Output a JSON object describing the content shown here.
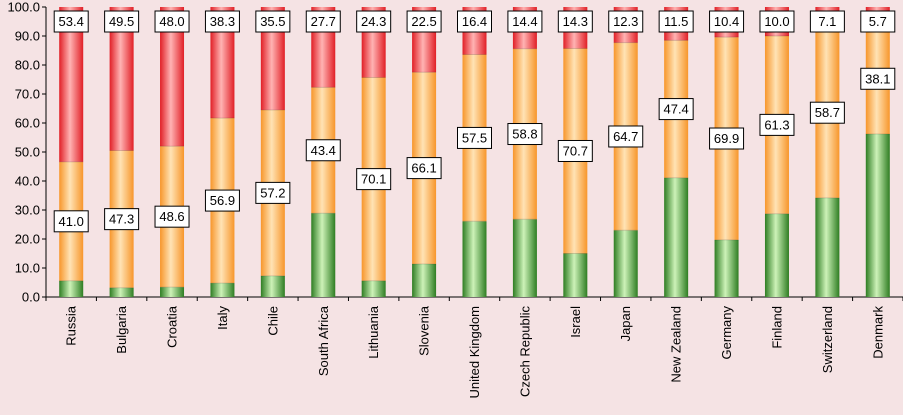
{
  "chart_data": {
    "type": "bar",
    "stacked": true,
    "title": "",
    "xlabel": "",
    "ylabel": "",
    "ylim": [
      0,
      100
    ],
    "ytick_labels": [
      "0.0",
      "10.0",
      "20.0",
      "30.0",
      "40.0",
      "50.0",
      "60.0",
      "70.0",
      "80.0",
      "90.0",
      "100.0"
    ],
    "grid": false,
    "legend": "none",
    "categories": [
      "Russia",
      "Bulgaria",
      "Croatia",
      "Italy",
      "Chile",
      "South Africa",
      "Lithuania",
      "Slovenia",
      "United Kingdom",
      "Czech Republic",
      "Israel",
      "Japan",
      "New Zealand",
      "Germany",
      "Finland",
      "Switzerland",
      "Denmark"
    ],
    "series": [
      {
        "color": "#3f9a35",
        "values": [
          5.6,
          3.2,
          3.4,
          4.8,
          7.3,
          28.9,
          5.6,
          11.4,
          26.1,
          26.8,
          15.0,
          23.0,
          41.1,
          19.7,
          28.7,
          34.2,
          56.2
        ],
        "show_labels": false
      },
      {
        "color": "#f9a94a",
        "values": [
          41.0,
          47.3,
          48.6,
          56.9,
          57.2,
          43.4,
          70.1,
          66.1,
          57.5,
          58.8,
          70.7,
          64.7,
          47.4,
          69.9,
          61.3,
          58.7,
          38.1
        ],
        "labels": [
          "41.0",
          "47.3",
          "48.6",
          "56.9",
          "57.2",
          "43.4",
          "70.1",
          "66.1",
          "57.5",
          "58.8",
          "70.7",
          "64.7",
          "47.4",
          "69.9",
          "61.3",
          "58.7",
          "38.1"
        ],
        "show_labels": true
      },
      {
        "color": "#e8383c",
        "values": [
          53.4,
          49.5,
          48.0,
          38.3,
          35.5,
          27.7,
          24.3,
          22.5,
          16.4,
          14.4,
          14.3,
          12.3,
          11.5,
          10.4,
          10.0,
          7.1,
          5.7
        ],
        "labels": [
          "53.4",
          "49.5",
          "48.0",
          "38.3",
          "35.5",
          "27.7",
          "24.3",
          "22.5",
          "16.4",
          "14.4",
          "14.3",
          "12.3",
          "11.5",
          "10.4",
          "10.0",
          "7.1",
          "5.7"
        ],
        "show_labels": true
      }
    ]
  }
}
